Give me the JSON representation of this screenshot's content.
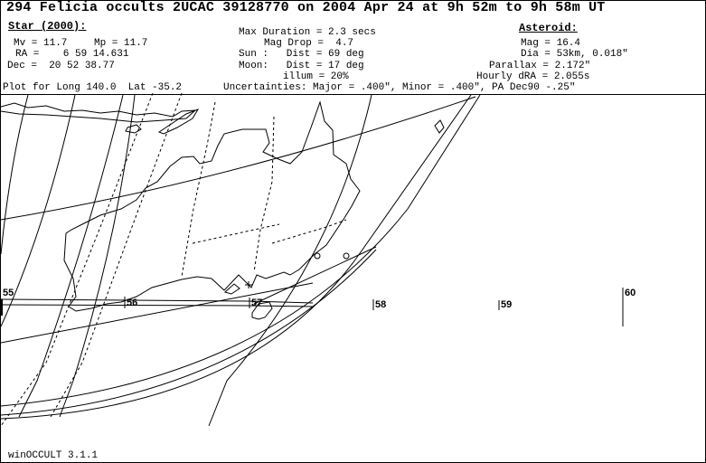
{
  "title": "294 Felicia occults 2UCAC 39128770 on 2004 Apr 24 at 9h 52m to 9h 58m UT",
  "star": {
    "heading": "Star (2000):",
    "mv": "Mv = 11.7",
    "mp": "Mp = 11.7",
    "ra": "RA =    6 59 14.631",
    "dec": "Dec =  20 52 38.77"
  },
  "circumstances": {
    "max_duration": "Max Duration = 2.3 secs",
    "mag_drop": "Mag Drop =  4.7",
    "sun": "Sun :   Dist = 69 deg",
    "moon": "Moon:   Dist = 17 deg",
    "illum": "illum = 20%"
  },
  "asteroid": {
    "heading": "Asteroid:",
    "mag": "Mag = 16.4",
    "dia": "Dia = 53km, 0.018\"",
    "parallax": "Parallax = 2.172\"",
    "hourly_dra": "Hourly dRA = 2.055s"
  },
  "plot_for": "Plot for Long 140.0  Lat -35.2",
  "uncertainties": "Uncertainties: Major = .400\", Minor = .400\", PA Dec90 -.25\"",
  "time_ticks": [
    "55",
    "56",
    "57",
    "58",
    "59",
    "60"
  ],
  "footer": "winOCCULT 3.1.1"
}
